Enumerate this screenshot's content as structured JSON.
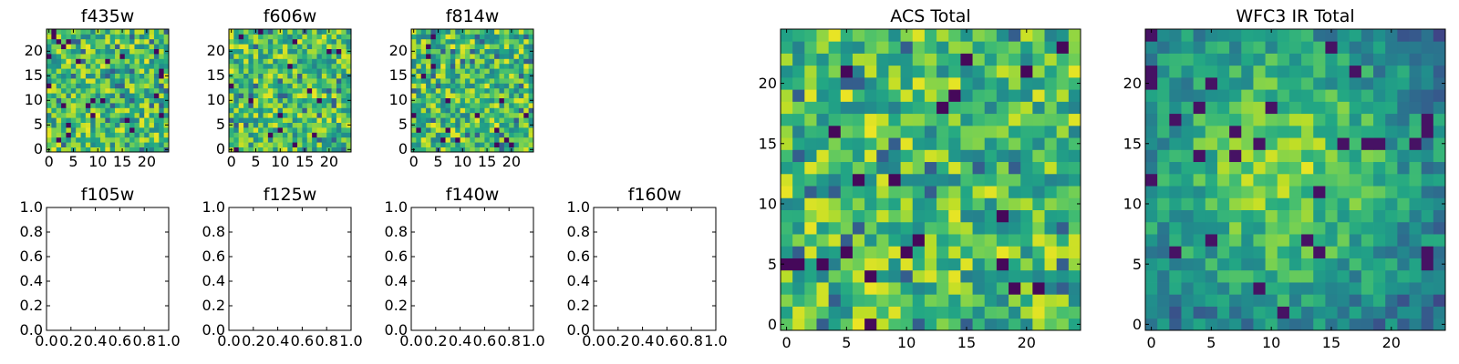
{
  "chart_data": [
    {
      "type": "heatmap",
      "title": "f435w",
      "xlim": [
        -0.5,
        24.5
      ],
      "ylim": [
        -0.5,
        24.5
      ],
      "xticks": [
        0,
        5,
        10,
        15,
        20
      ],
      "yticks": [
        0,
        5,
        10,
        15,
        20
      ],
      "grid_size": [
        25,
        25
      ],
      "cells": "pixel map (25×25)"
    },
    {
      "type": "heatmap",
      "title": "f606w",
      "xlim": [
        -0.5,
        24.5
      ],
      "ylim": [
        -0.5,
        24.5
      ],
      "xticks": [
        0,
        5,
        10,
        15,
        20
      ],
      "yticks": [
        0,
        5,
        10,
        15,
        20
      ],
      "grid_size": [
        25,
        25
      ],
      "cells": "pixel map (25×25)"
    },
    {
      "type": "heatmap",
      "title": "f814w",
      "xlim": [
        -0.5,
        24.5
      ],
      "ylim": [
        -0.5,
        24.5
      ],
      "xticks": [
        0,
        5,
        10,
        15,
        20
      ],
      "yticks": [
        0,
        5,
        10,
        15,
        20
      ],
      "grid_size": [
        25,
        25
      ],
      "cells": "pixel map (25×25)"
    },
    {
      "type": "heatmap",
      "title": "f105w",
      "xlim": [
        0,
        1
      ],
      "ylim": [
        0,
        1
      ],
      "xticks": [
        "0.0",
        "0.2",
        "0.4",
        "0.6",
        "0.8",
        "1.0"
      ],
      "yticks": [
        "0.0",
        "0.2",
        "0.4",
        "0.6",
        "0.8",
        "1.0"
      ],
      "empty": true
    },
    {
      "type": "heatmap",
      "title": "f125w",
      "xlim": [
        0,
        1
      ],
      "ylim": [
        0,
        1
      ],
      "xticks": [
        "0.0",
        "0.2",
        "0.4",
        "0.6",
        "0.8",
        "1.0"
      ],
      "yticks": [
        "0.0",
        "0.2",
        "0.4",
        "0.6",
        "0.8",
        "1.0"
      ],
      "empty": true
    },
    {
      "type": "heatmap",
      "title": "f140w",
      "xlim": [
        0,
        1
      ],
      "ylim": [
        0,
        1
      ],
      "xticks": [
        "0.0",
        "0.2",
        "0.4",
        "0.6",
        "0.8",
        "1.0"
      ],
      "yticks": [
        "0.0",
        "0.2",
        "0.4",
        "0.6",
        "0.8",
        "1.0"
      ],
      "empty": true
    },
    {
      "type": "heatmap",
      "title": "f160w",
      "xlim": [
        0,
        1
      ],
      "ylim": [
        0,
        1
      ],
      "xticks": [
        "0.0",
        "0.2",
        "0.4",
        "0.6",
        "0.8",
        "1.0"
      ],
      "yticks": [
        "0.0",
        "0.2",
        "0.4",
        "0.6",
        "0.8",
        "1.0"
      ],
      "empty": true
    },
    {
      "type": "heatmap",
      "title": "ACS Total",
      "xlim": [
        -0.5,
        24.5
      ],
      "ylim": [
        -0.5,
        24.5
      ],
      "xticks": [
        0,
        5,
        10,
        15,
        20
      ],
      "yticks": [
        0,
        5,
        10,
        15,
        20
      ],
      "grid_size": [
        25,
        25
      ],
      "cells": "pixel map (25×25)"
    },
    {
      "type": "heatmap",
      "title": "WFC3 IR Total",
      "xlim": [
        -0.5,
        24.5
      ],
      "ylim": [
        -0.5,
        24.5
      ],
      "xticks": [
        0,
        5,
        10,
        15,
        20
      ],
      "yticks": [
        0,
        5,
        10,
        15,
        20
      ],
      "grid_size": [
        25,
        25
      ],
      "cells": "pixel map (25×25)"
    }
  ],
  "colors": {
    "colormap": "viridis",
    "viridis": [
      "#440154",
      "#3b528b",
      "#21918c",
      "#5ec962",
      "#fde725"
    ],
    "axes": "#000000",
    "background": "#ffffff"
  }
}
